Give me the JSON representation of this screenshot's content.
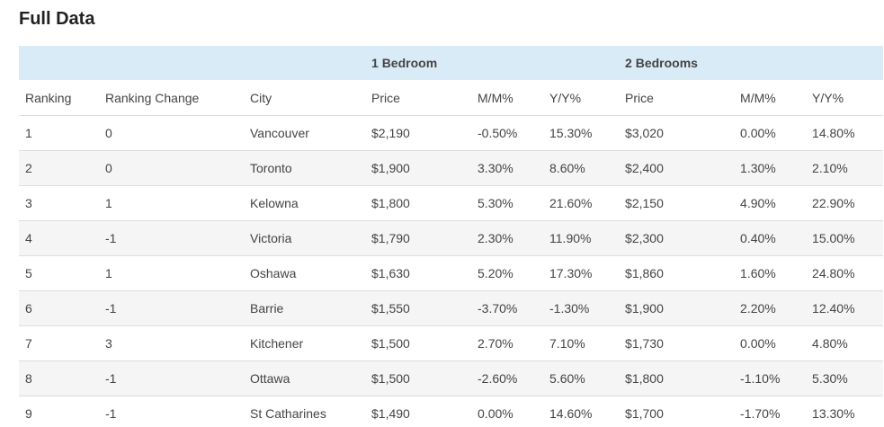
{
  "title": "Full Data",
  "group_headers": {
    "one_bedroom": "1 Bedroom",
    "two_bedrooms": "2 Bedrooms"
  },
  "columns": [
    "Ranking",
    "Ranking Change",
    "City",
    "Price",
    "M/M%",
    "Y/Y%",
    "Price",
    "M/M%",
    "Y/Y%"
  ],
  "rows": [
    [
      "1",
      "0",
      "Vancouver",
      "$2,190",
      "-0.50%",
      "15.30%",
      "$3,020",
      "0.00%",
      "14.80%"
    ],
    [
      "2",
      "0",
      "Toronto",
      "$1,900",
      "3.30%",
      "8.60%",
      "$2,400",
      "1.30%",
      "2.10%"
    ],
    [
      "3",
      "1",
      "Kelowna",
      "$1,800",
      "5.30%",
      "21.60%",
      "$2,150",
      "4.90%",
      "22.90%"
    ],
    [
      "4",
      "-1",
      "Victoria",
      "$1,790",
      "2.30%",
      "11.90%",
      "$2,300",
      "0.40%",
      "15.00%"
    ],
    [
      "5",
      "1",
      "Oshawa",
      "$1,630",
      "5.20%",
      "17.30%",
      "$1,860",
      "1.60%",
      "24.80%"
    ],
    [
      "6",
      "-1",
      "Barrie",
      "$1,550",
      "-3.70%",
      "-1.30%",
      "$1,900",
      "2.20%",
      "12.40%"
    ],
    [
      "7",
      "3",
      "Kitchener",
      "$1,500",
      "2.70%",
      "7.10%",
      "$1,730",
      "0.00%",
      "4.80%"
    ],
    [
      "8",
      "-1",
      "Ottawa",
      "$1,500",
      "-2.60%",
      "5.60%",
      "$1,800",
      "-1.10%",
      "5.30%"
    ],
    [
      "9",
      "-1",
      "St Catharines",
      "$1,490",
      "0.00%",
      "14.60%",
      "$1,700",
      "-1.70%",
      "13.30%"
    ]
  ],
  "colors": {
    "group_header_bg": "#d9ebf7",
    "stripe_bg": "#f5f5f5",
    "border": "#dddddd"
  }
}
